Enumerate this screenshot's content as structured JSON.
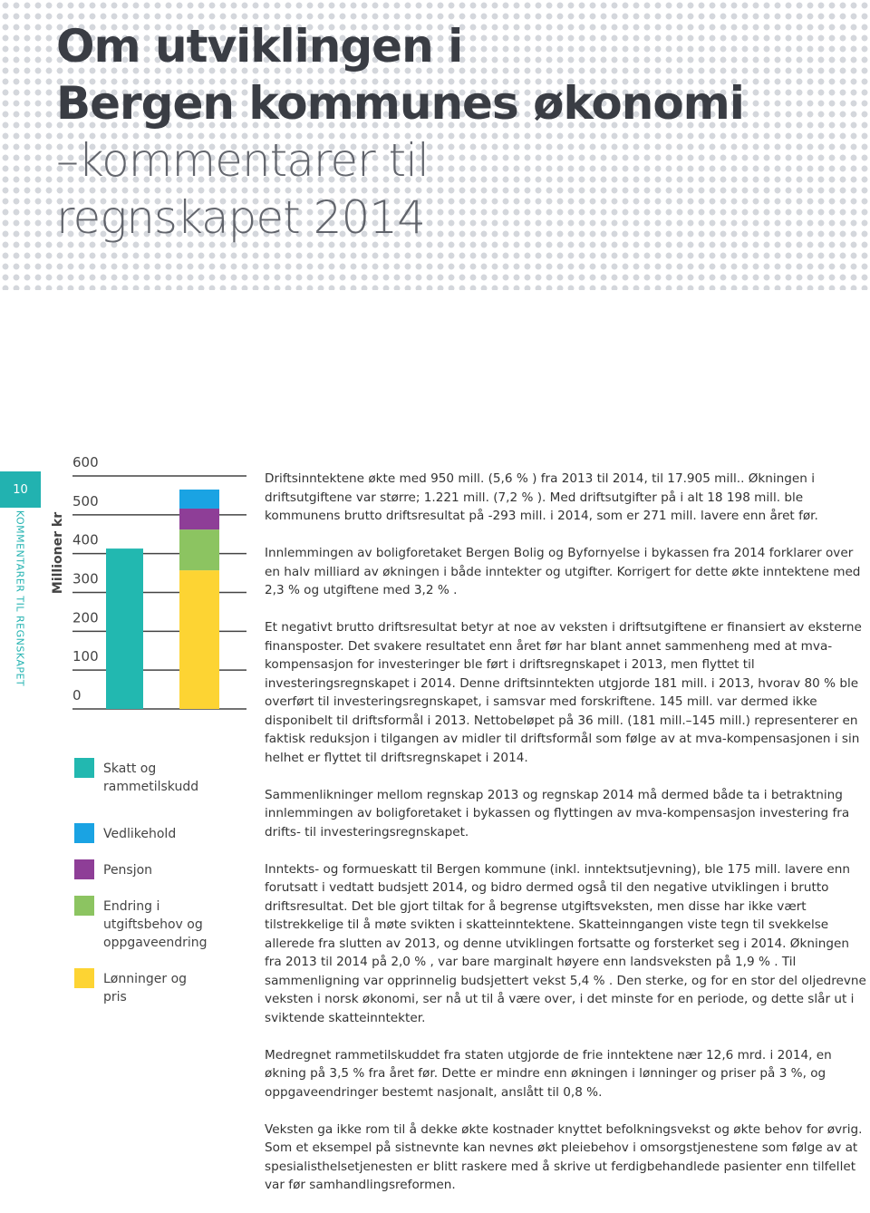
{
  "header": {
    "title_bold": [
      "Om utviklingen i",
      "Bergen kommunes økonomi"
    ],
    "title_light": [
      "–kommentarer til",
      "regnskapet 2014"
    ]
  },
  "sidebar": {
    "page_number": "10",
    "section": "KOMMENTARER TIL REGNSKAPET"
  },
  "chart_data": {
    "type": "stacked_bar",
    "y_label": "Millioner kr",
    "categories": [
      null,
      null
    ],
    "series": [
      {
        "name": "Skatt og rammetilskudd",
        "color": "#22b8b0",
        "values": [
          413,
          null
        ]
      },
      {
        "name": "Vedlikehold",
        "color": "#1aa3e3",
        "values": [
          null,
          49
        ]
      },
      {
        "name": "Pensjon",
        "color": "#8e3e97",
        "values": [
          null,
          54
        ]
      },
      {
        "name": "Endring i utgiftsbehov og oppgaveendring",
        "color": "#8cc461",
        "values": [
          null,
          105
        ]
      },
      {
        "name": "Lønninger og pris",
        "color": "#fdd433",
        "values": [
          null,
          357
        ]
      }
    ],
    "ylim": [
      0,
      600
    ],
    "yticks": [
      0,
      100,
      200,
      300,
      400,
      500,
      600
    ],
    "grid": true
  },
  "body": {
    "paragraphs": [
      "Driftsinntektene økte med 950 mill. (5,6 % ) fra 2013 til 2014, til 17.905 mill.. Økningen i driftsutgiftene var større; 1.221 mill. (7,2 % ). Med driftsutgifter på i alt 18 198 mill. ble kommunens brutto driftsresultat på -293 mill. i 2014, som er 271 mill. lavere enn året før.",
      "Innlemmingen av boligforetaket Bergen Bolig og Byfornyelse i bykassen fra 2014 forklarer over en halv milliard av økningen i både inntekter og utgifter. Korrigert for dette økte inntektene med 2,3 % og utgiftene med 3,2 % .",
      "Et negativt brutto driftsresultat betyr at noe av veksten i driftsutgiftene er finansiert av eksterne finansposter. Det svakere resultatet enn året før har blant annet sammenheng med at mva-kompensasjon for investeringer ble ført i driftsregnskapet i 2013, men flyttet til investeringsregnskapet i 2014. Denne driftsinntekten utgjorde 181 mill. i 2013, hvorav 80 % ble overført til investeringsregnskapet, i samsvar med forskriftene. 145 mill. var dermed ikke disponibelt til driftsformål i 2013. Nettobeløpet på 36 mill. (181 mill.–145 mill.) representerer en faktisk reduksjon i tilgangen av midler til driftsformål som følge av at mva-kompensasjonen i sin helhet er flyttet til driftsregnskapet i 2014.",
      "Sammenlikninger mellom regnskap 2013 og regnskap 2014 må dermed både ta i betraktning innlemmingen av boligforetaket i bykassen og flyttingen av mva-kompensasjon investering fra drifts- til investeringsregnskapet.",
      "Inntekts- og formueskatt til Bergen kommune (inkl. inntektsutjevning), ble 175 mill. lavere enn forutsatt i vedtatt budsjett 2014, og bidro dermed også til den negative utviklingen i brutto driftsresultat. Det ble gjort tiltak for å begrense utgiftsveksten, men disse har ikke vært tilstrekkelige til å møte svikten i skatteinntektene. Skatteinngangen viste tegn til svekkelse allerede fra slutten av 2013, og denne utviklingen fortsatte og forsterket seg i 2014. Økningen fra 2013 til 2014 på 2,0 % , var bare marginalt høyere enn landsveksten på 1,9 % . Til sammenligning var opprinnelig budsjettert vekst 5,4 % . Den sterke, og for en stor del oljedrevne veksten i norsk økonomi, ser nå ut til å være over, i det minste for en periode, og dette slår ut i sviktende skatteinntekter.",
      "Medregnet rammetilskuddet fra staten utgjorde de frie inntektene nær 12,6 mrd. i 2014, en økning på 3,5 % fra året før. Dette er mindre enn økningen i lønninger og priser på 3 %, og oppgaveendringer bestemt nasjonalt, anslått til 0,8 %.",
      "Veksten ga ikke rom til å dekke økte kostnader knyttet befolkningsvekst og økte behov for øvrig. Som et eksempel på sistnevnte kan nevnes økt pleiebehov i omsorgstjenestene som følge av at spesialisthelsetjenesten er blitt raskere med å skrive ut ferdigbehandlede pasienter enn tilfellet var før samhandlingsreformen."
    ]
  }
}
